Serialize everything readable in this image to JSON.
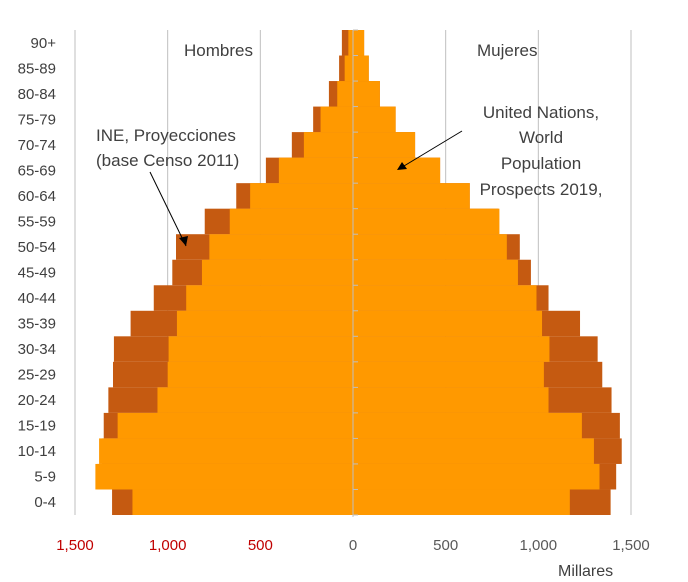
{
  "chart_data": {
    "type": "bar",
    "orientation": "horizontal-population-pyramid",
    "categories": [
      "0-4",
      "5-9",
      "10-14",
      "15-19",
      "20-24",
      "25-29",
      "30-34",
      "35-39",
      "40-44",
      "45-49",
      "50-54",
      "55-59",
      "60-64",
      "65-69",
      "70-74",
      "75-79",
      "80-84",
      "85-89",
      "90+"
    ],
    "sides": {
      "left": "Hombres",
      "right": "Mujeres"
    },
    "series": [
      {
        "color": "#C55A11",
        "hombres": [
          1300,
          1380,
          1355,
          1345,
          1320,
          1295,
          1290,
          1200,
          1075,
          975,
          955,
          800,
          630,
          470,
          330,
          215,
          130,
          75,
          60
        ],
        "mujeres": [
          1390,
          1420,
          1450,
          1440,
          1395,
          1345,
          1320,
          1225,
          1055,
          960,
          900,
          785,
          630,
          470,
          335,
          230,
          145,
          85,
          60
        ]
      },
      {
        "color": "#FF9900",
        "hombres": [
          1190,
          1390,
          1370,
          1270,
          1055,
          1000,
          995,
          950,
          900,
          815,
          775,
          665,
          555,
          400,
          265,
          175,
          85,
          45,
          25
        ],
        "mujeres": [
          1170,
          1330,
          1300,
          1235,
          1055,
          1030,
          1060,
          1020,
          990,
          890,
          830,
          790,
          630,
          470,
          335,
          230,
          145,
          85,
          60
        ]
      }
    ],
    "annotations": [
      {
        "id": "ine",
        "lines": [
          "INE, Proyecciones",
          "(base Censo 2011)"
        ]
      },
      {
        "id": "un",
        "lines": [
          "United Nations,",
          "World",
          "Population",
          "Prospects 2019,"
        ]
      }
    ],
    "x_ticks": [
      {
        "value": -1500,
        "label": "1,500",
        "color": "#C00000"
      },
      {
        "value": -1000,
        "label": "1,000",
        "color": "#C00000"
      },
      {
        "value": -500,
        "label": "500",
        "color": "#C00000"
      },
      {
        "value": 0,
        "label": "0",
        "color": "#595959"
      },
      {
        "value": 500,
        "label": "500",
        "color": "#595959"
      },
      {
        "value": 1000,
        "label": "1,000",
        "color": "#595959"
      },
      {
        "value": 1500,
        "label": "1,500",
        "color": "#595959"
      }
    ],
    "xlim": [
      -1500,
      1500
    ],
    "xlabel": "Millares",
    "grid": true
  }
}
